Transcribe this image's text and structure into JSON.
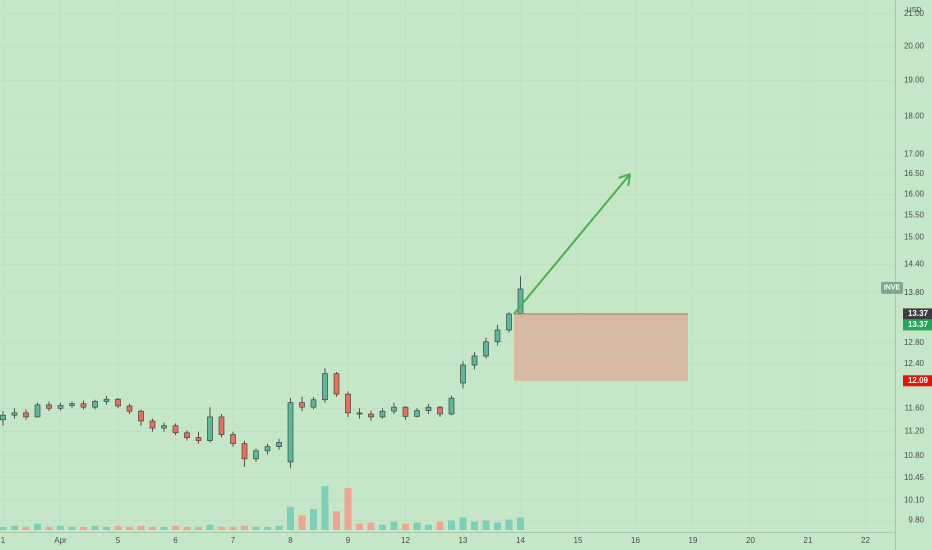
{
  "chart_data": {
    "type": "candlestick",
    "symbol": "INVE",
    "currency": "USD",
    "log_scale": true,
    "grid": true,
    "up_color": "#5bb89a",
    "down_color": "#e5705f",
    "up_volume_color": "#7fcfb8",
    "down_volume_color": "#f0a494",
    "categories": [
      "1",
      null,
      null,
      null,
      null,
      "Apr",
      null,
      null,
      null,
      null,
      "5",
      null,
      null,
      null,
      null,
      "6",
      null,
      null,
      null,
      null,
      "7",
      null,
      null,
      null,
      null,
      "8",
      null,
      null,
      null,
      null,
      "9",
      null,
      null,
      null,
      null,
      "12",
      null,
      null,
      null,
      null,
      "13",
      null,
      null,
      null,
      null,
      "14",
      null,
      null,
      null,
      null,
      "15",
      null,
      null,
      null,
      null,
      "16",
      null,
      null,
      null,
      null,
      "19",
      null,
      null,
      null,
      null,
      "20",
      null,
      null,
      null,
      null,
      "21",
      null,
      null,
      null,
      null,
      "22",
      null,
      null
    ],
    "open": [
      11.4,
      11.48,
      11.52,
      11.45,
      11.66,
      11.6,
      11.65,
      11.68,
      11.62,
      11.72,
      11.76,
      11.64,
      11.55,
      11.38,
      11.26,
      11.3,
      11.18,
      11.1,
      11.05,
      11.45,
      11.15,
      11.0,
      10.75,
      10.88,
      10.95,
      10.7,
      11.7,
      11.62,
      11.75,
      12.22,
      11.85,
      11.52,
      11.5,
      11.45,
      11.55,
      11.62,
      11.46,
      11.56,
      11.62,
      11.5,
      12.05,
      12.38,
      12.55,
      12.82,
      13.05,
      13.37,
      null,
      null,
      null,
      null,
      null,
      null,
      null,
      null,
      null,
      null,
      null,
      null,
      null,
      null,
      null,
      null,
      null,
      null,
      null,
      null,
      null,
      null,
      null,
      null,
      null,
      null,
      null,
      null,
      null,
      null,
      null,
      null
    ],
    "high": [
      11.55,
      11.6,
      11.58,
      11.7,
      11.72,
      11.7,
      11.72,
      11.74,
      11.75,
      11.82,
      11.78,
      11.68,
      11.58,
      11.42,
      11.35,
      11.34,
      11.22,
      11.2,
      11.62,
      11.5,
      11.2,
      11.05,
      10.92,
      11.0,
      11.08,
      11.78,
      11.8,
      11.8,
      12.32,
      12.25,
      11.9,
      11.6,
      11.56,
      11.6,
      11.7,
      11.64,
      11.6,
      11.68,
      11.64,
      11.82,
      12.45,
      12.62,
      12.9,
      13.15,
      13.4,
      14.15,
      null,
      null,
      null,
      null,
      null,
      null,
      null,
      null,
      null,
      null,
      null,
      null,
      null,
      null,
      null,
      null,
      null,
      null,
      null,
      null,
      null,
      null,
      null,
      null,
      null,
      null,
      null,
      null,
      null,
      null,
      null,
      null
    ],
    "low": [
      11.3,
      11.42,
      11.4,
      11.44,
      11.55,
      11.56,
      11.6,
      11.58,
      11.58,
      11.66,
      11.6,
      11.5,
      11.3,
      11.2,
      11.2,
      11.14,
      11.05,
      11.0,
      11.02,
      11.1,
      10.95,
      10.62,
      10.7,
      10.82,
      10.9,
      10.6,
      11.55,
      11.58,
      11.7,
      11.8,
      11.45,
      11.42,
      11.38,
      11.42,
      11.5,
      11.4,
      11.44,
      11.5,
      11.45,
      11.48,
      11.95,
      12.3,
      12.5,
      12.75,
      13.0,
      13.3,
      null,
      null,
      null,
      null,
      null,
      null,
      null,
      null,
      null,
      null,
      null,
      null,
      null,
      null,
      null,
      null,
      null,
      null,
      null,
      null,
      null,
      null,
      null,
      null,
      null,
      null,
      null,
      null,
      null,
      null,
      null,
      null
    ],
    "close": [
      11.48,
      11.52,
      11.45,
      11.66,
      11.6,
      11.65,
      11.68,
      11.62,
      11.72,
      11.76,
      11.64,
      11.55,
      11.38,
      11.26,
      11.3,
      11.18,
      11.1,
      11.05,
      11.45,
      11.15,
      11.0,
      10.75,
      10.88,
      10.95,
      11.02,
      11.7,
      11.62,
      11.75,
      12.22,
      11.85,
      11.52,
      11.5,
      11.45,
      11.55,
      11.62,
      11.46,
      11.56,
      11.62,
      11.5,
      11.78,
      12.38,
      12.55,
      12.82,
      13.05,
      13.37,
      13.88,
      null,
      null,
      null,
      null,
      null,
      null,
      null,
      null,
      null,
      null,
      null,
      null,
      null,
      null,
      null,
      null,
      null,
      null,
      null,
      null,
      null,
      null,
      null,
      null,
      null,
      null,
      null,
      null,
      null,
      null,
      null,
      null
    ],
    "volume": [
      3,
      4,
      3,
      6,
      3,
      4,
      3,
      3,
      4,
      3,
      4,
      3,
      4,
      3,
      3,
      4,
      3,
      3,
      5,
      3,
      3,
      4,
      3,
      3,
      4,
      22,
      14,
      20,
      42,
      18,
      40,
      6,
      7,
      5,
      8,
      6,
      7,
      5,
      8,
      9,
      12,
      8,
      9,
      7,
      10,
      12,
      null,
      null,
      null,
      null,
      null,
      null,
      null,
      null,
      null,
      null,
      null,
      null,
      null,
      null,
      null,
      null,
      null,
      null,
      null,
      null,
      null,
      null,
      null,
      null,
      null,
      null,
      null,
      null,
      null,
      null,
      null,
      null
    ],
    "ylim": [
      9.63,
      21.44
    ],
    "yticks": [
      {
        "value": 21,
        "label": "21.00"
      },
      {
        "value": 20,
        "label": "20.00"
      },
      {
        "value": 19,
        "label": "19.00"
      },
      {
        "value": 18,
        "label": "18.00"
      },
      {
        "value": 17,
        "label": "17.00"
      },
      {
        "value": 16.5,
        "label": "16.50"
      },
      {
        "value": 16,
        "label": "16.00"
      },
      {
        "value": 15.5,
        "label": "15.50"
      },
      {
        "value": 15,
        "label": "15.00"
      },
      {
        "value": 14.4,
        "label": "14.40"
      },
      {
        "value": 13.8,
        "label": "13.80"
      },
      {
        "value": 12.8,
        "label": "12.80"
      },
      {
        "value": 12.4,
        "label": "12.40"
      },
      {
        "value": 11.6,
        "label": "11.60"
      },
      {
        "value": 11.2,
        "label": "11.20"
      },
      {
        "value": 10.8,
        "label": "10.80"
      },
      {
        "value": 10.45,
        "label": "10.45"
      },
      {
        "value": 10.1,
        "label": "10.10"
      },
      {
        "value": 9.8,
        "label": "9.80"
      }
    ],
    "price_labels": [
      {
        "value": 13.37,
        "color": "#3d3d3d"
      },
      {
        "value": 13.37,
        "color": "#26a65b"
      },
      {
        "value": 12.09,
        "color": "#e8120c"
      }
    ],
    "target_arrow": {
      "from": 13.37,
      "to": 16.5,
      "color": "#4caf50"
    },
    "stop_box": {
      "top": 13.37,
      "bottom": 12.09,
      "color": "#d9b49e"
    }
  }
}
